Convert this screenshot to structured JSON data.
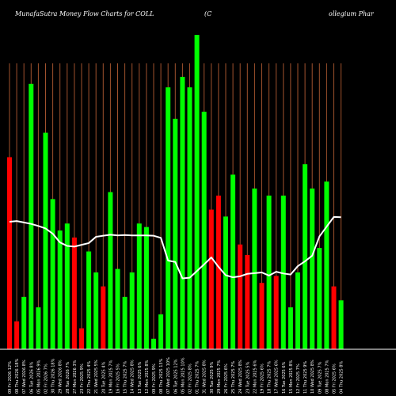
{
  "chart_data": {
    "type": "bar",
    "title_left": "MunafaSutra  Money Flow  Charts for COLL",
    "title_mid": "(C",
    "title_right": "ollegium Phar",
    "colors": {
      "background": "#000000",
      "up": "#00ff00",
      "down": "#ff0000",
      "line": "#ffffff",
      "vgrid": "#a0522d",
      "axis": "#ffffff"
    },
    "ylim": [
      0,
      100
    ],
    "categories": [
      "09 Fri 2026 12%",
      "08 Thu 2026 18%",
      "07 Wed 2026 8%",
      "06 Tue 2026 8%",
      "05 Mon 2026 9%",
      "02 Fri 2026 7%",
      "30 Thu 2026 18%",
      "29 Wed 2026 8%",
      "28 Tue 2026 7%",
      "27 Mon 2026 3%",
      "23 Fri 2025 9%",
      "22 Thu 2025 4%",
      "21 Wed 2025 5%",
      "20 Tue 2025 4%",
      "19 Mon 2025 7%",
      "16 Fri 2025 5%",
      "15 Thu 2025 7%",
      "14 Wed 2025 8%",
      "13 Tue 2025 6%",
      "12 Mon 2025 8%",
      "09 Fri 2025 9%",
      "08 Thu 2025 13%",
      "07 Wed 2025 10%",
      "06 Tue 2025 12%",
      "05 Mon 2025 10%",
      "02 Fri 2025 8%",
      "01 Thu 2025 7%",
      "31 Wed 2025 8%",
      "30 Tue 2025 9%",
      "29 Mon 2025 7%",
      "26 Fri 2025 6%",
      "25 Thu 2025 7%",
      "24 Wed 2025 8%",
      "23 Tue 2025 5%",
      "22 Mon 2025 6%",
      "19 Fri 2025 6%",
      "18 Thu 2025 7%",
      "17 Wed 2025 6%",
      "16 Tue 2025 6%",
      "15 Mon 2025 8%",
      "12 Fri 2025 7%",
      "11 Thu 2025 9%",
      "10 Wed 2025 8%",
      "09 Tue 2025 7%",
      "08 Mon 2025 7%",
      "05 Fri 2025 6%",
      "04 Thu 2025 8%"
    ],
    "values": [
      55,
      8,
      15,
      76,
      12,
      62,
      43,
      34,
      36,
      32,
      6,
      28,
      22,
      18,
      45,
      23,
      15,
      22,
      36,
      35,
      3,
      10,
      75,
      66,
      78,
      75,
      90,
      68,
      40,
      44,
      38,
      50,
      30,
      27,
      46,
      19,
      44,
      21,
      44,
      12,
      22,
      53,
      46,
      29,
      48,
      18,
      14
    ],
    "directions": [
      "down",
      "down",
      "up",
      "up",
      "up",
      "up",
      "up",
      "up",
      "up",
      "down",
      "down",
      "up",
      "up",
      "down",
      "up",
      "up",
      "up",
      "up",
      "up",
      "up",
      "up",
      "up",
      "up",
      "up",
      "up",
      "up",
      "up",
      "up",
      "down",
      "down",
      "up",
      "up",
      "down",
      "down",
      "up",
      "down",
      "up",
      "down",
      "up",
      "up",
      "up",
      "up",
      "up",
      "up",
      "up",
      "down",
      "up"
    ],
    "line": [
      36.5,
      36.7,
      36.3,
      35.9,
      35.3,
      34.6,
      33.1,
      30.6,
      29.6,
      29.4,
      29.9,
      30.4,
      32.2,
      32.5,
      32.8,
      32.6,
      32.7,
      32.6,
      32.6,
      32.6,
      32.5,
      31.9,
      25.4,
      25.0,
      20.3,
      20.5,
      22.4,
      24.3,
      26.3,
      23.6,
      21.2,
      20.6,
      20.9,
      21.6,
      21.8,
      22.0,
      21.1,
      22.2,
      21.7,
      21.4,
      23.8,
      25.2,
      26.8,
      32.3,
      35.1,
      37.9,
      37.8
    ]
  }
}
